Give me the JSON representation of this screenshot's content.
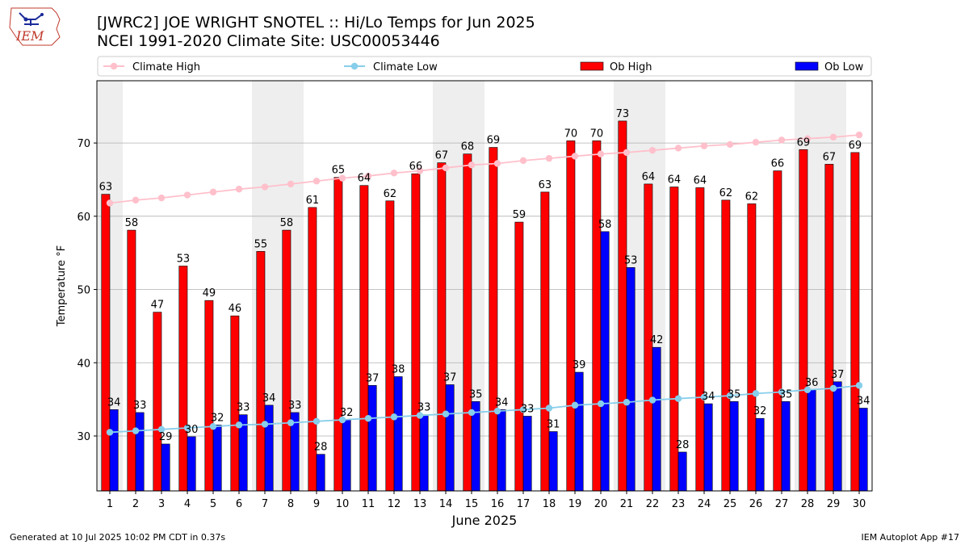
{
  "header": {
    "title_line1": "[JWRC2] JOE WRIGHT SNOTEL :: Hi/Lo Temps for Jun 2025",
    "title_line2": "NCEI 1991-2020 Climate Site: USC00053446"
  },
  "logo": {
    "text": "IEM"
  },
  "footer": {
    "generated": "Generated at 10 Jul 2025 10:02 PM CDT in 0.37s",
    "app": "IEM Autoplot App #17"
  },
  "colors": {
    "ob_high": "#ff0000",
    "ob_low": "#0000ff",
    "climate_high": "#ffc0cb",
    "climate_low": "#87ceeb",
    "weekend_shade": "#eeeeee",
    "grid": "#b0b0b0"
  },
  "chart_data": {
    "type": "bar",
    "title": "[JWRC2] JOE WRIGHT SNOTEL :: Hi/Lo Temps for Jun 2025",
    "subtitle": "NCEI 1991-2020 Climate Site: USC00053446",
    "xlabel": "June 2025",
    "ylabel": "Temperature °F",
    "ylim": [
      22.5,
      78.5
    ],
    "yticks": [
      30,
      40,
      50,
      60,
      70
    ],
    "grid": true,
    "legend_position": "top",
    "categories": [
      "1",
      "2",
      "3",
      "4",
      "5",
      "6",
      "7",
      "8",
      "9",
      "10",
      "11",
      "12",
      "13",
      "14",
      "15",
      "16",
      "17",
      "18",
      "19",
      "20",
      "21",
      "22",
      "23",
      "24",
      "25",
      "26",
      "27",
      "28",
      "29",
      "30"
    ],
    "shaded_days": [
      "1",
      "7",
      "8",
      "14",
      "15",
      "21",
      "22",
      "28",
      "29"
    ],
    "series": [
      {
        "name": "Ob High",
        "kind": "bar",
        "values": [
          63.0,
          58.1,
          46.9,
          53.2,
          48.5,
          46.4,
          55.2,
          58.1,
          61.2,
          65.3,
          64.2,
          62.1,
          65.8,
          67.3,
          68.5,
          69.4,
          59.2,
          63.3,
          70.3,
          70.3,
          73.0,
          64.4,
          64.0,
          63.9,
          62.2,
          61.7,
          66.2,
          69.1,
          67.1,
          68.7
        ],
        "labels": [
          "63",
          "58",
          "47",
          "53",
          "49",
          "46",
          "55",
          "58",
          "61",
          "65",
          "64",
          "62",
          "66",
          "67",
          "68",
          "69",
          "59",
          "63",
          "70",
          "70",
          "73",
          "64",
          "64",
          "64",
          "62",
          "62",
          "66",
          "69",
          "67",
          "69"
        ]
      },
      {
        "name": "Ob Low",
        "kind": "bar",
        "values": [
          33.6,
          33.2,
          28.9,
          29.9,
          31.5,
          32.9,
          34.2,
          33.2,
          27.5,
          32.2,
          36.9,
          38.1,
          32.9,
          37.0,
          34.7,
          33.6,
          32.7,
          30.6,
          38.7,
          57.9,
          53.0,
          42.1,
          27.8,
          34.4,
          34.7,
          32.4,
          34.7,
          36.3,
          37.4,
          33.8
        ],
        "labels": [
          "34",
          "33",
          "29",
          "30",
          "32",
          "33",
          "34",
          "33",
          "28",
          "32",
          "37",
          "38",
          "33",
          "37",
          "35",
          "34",
          "33",
          "31",
          "39",
          "58",
          "53",
          "42",
          "28",
          "34",
          "35",
          "32",
          "35",
          "36",
          "37",
          "34"
        ]
      },
      {
        "name": "Climate High",
        "kind": "line",
        "values": [
          61.8,
          62.2,
          62.5,
          62.9,
          63.3,
          63.7,
          64.0,
          64.4,
          64.8,
          65.2,
          65.5,
          65.9,
          66.2,
          66.6,
          67.0,
          67.2,
          67.6,
          67.9,
          68.2,
          68.5,
          68.7,
          69.0,
          69.3,
          69.6,
          69.8,
          70.1,
          70.4,
          70.6,
          70.8,
          71.1
        ]
      },
      {
        "name": "Climate Low",
        "kind": "line",
        "values": [
          30.5,
          30.7,
          30.9,
          31.1,
          31.3,
          31.5,
          31.6,
          31.8,
          32.0,
          32.2,
          32.4,
          32.6,
          32.8,
          33.0,
          33.2,
          33.4,
          33.6,
          33.8,
          34.2,
          34.4,
          34.6,
          34.9,
          35.1,
          35.3,
          35.5,
          35.8,
          36.0,
          36.3,
          36.5,
          36.9
        ]
      }
    ]
  }
}
